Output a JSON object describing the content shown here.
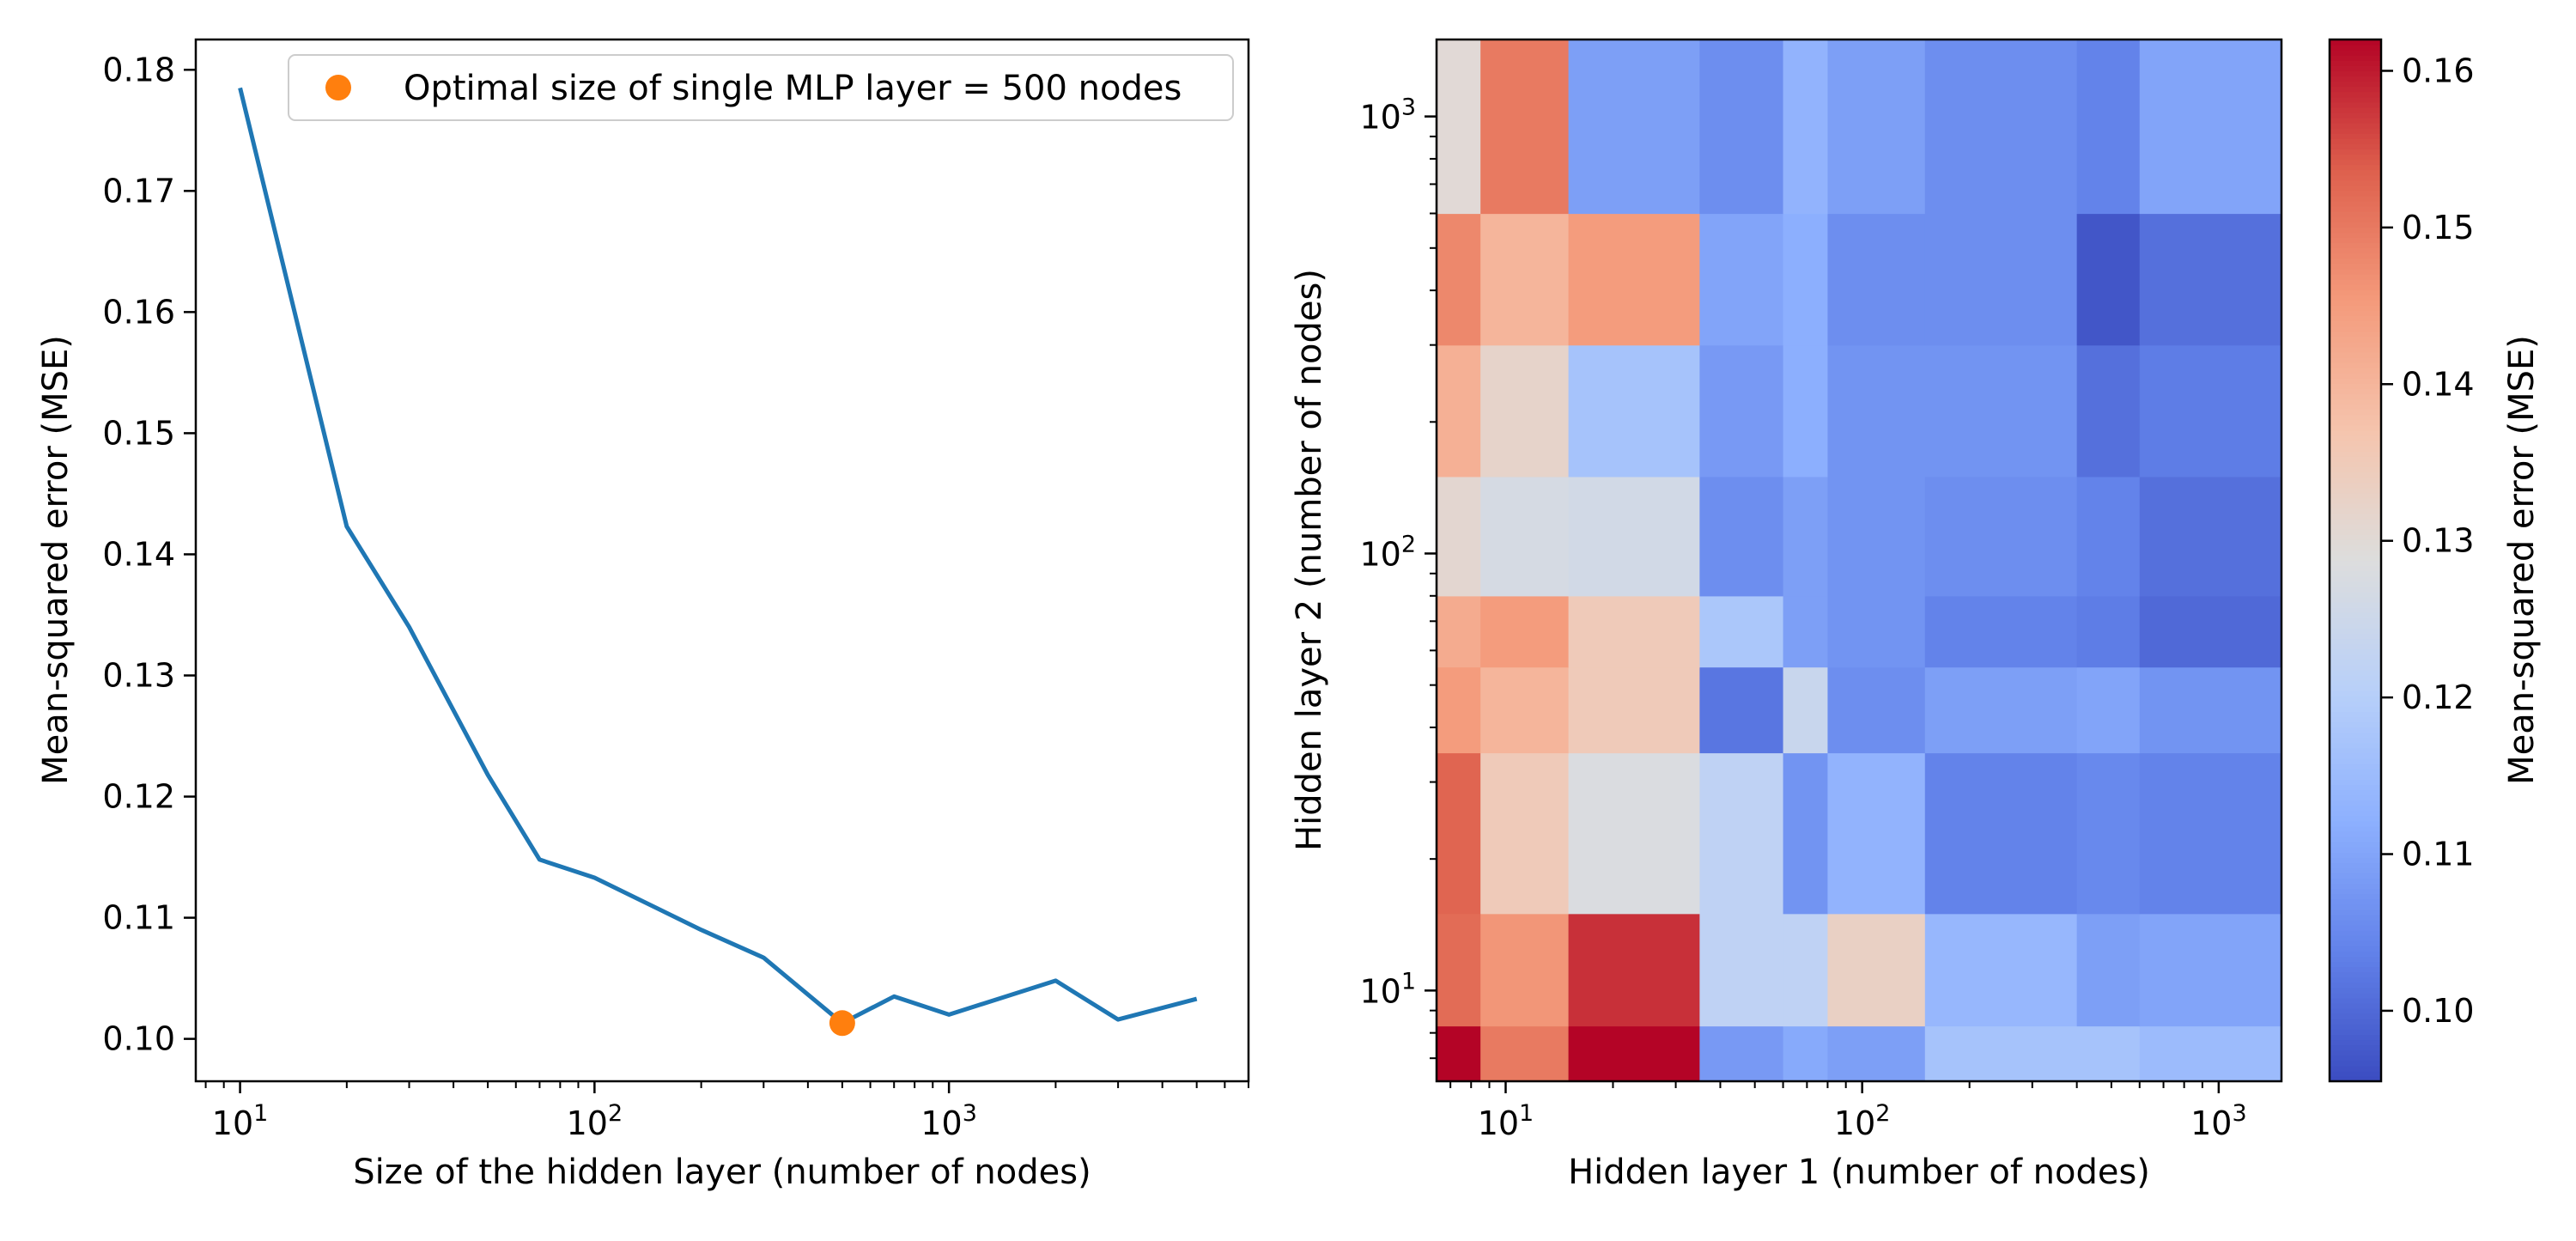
{
  "chart_data": [
    {
      "type": "line",
      "xlabel": "Size of the hidden layer (number of nodes)",
      "ylabel": "Mean-squared error (MSE)",
      "xscale": "log",
      "xlim": [
        7.5,
        7000
      ],
      "ylim": [
        0.0965,
        0.1825
      ],
      "xticks": [
        {
          "value": 10,
          "base": "10",
          "exp": "1"
        },
        {
          "value": 100,
          "base": "10",
          "exp": "2"
        },
        {
          "value": 1000,
          "base": "10",
          "exp": "3"
        }
      ],
      "yticks": [
        0.1,
        0.11,
        0.12,
        0.13,
        0.14,
        0.15,
        0.16,
        0.17,
        0.18
      ],
      "ytick_labels": [
        "0.10",
        "0.11",
        "0.12",
        "0.13",
        "0.14",
        "0.15",
        "0.16",
        "0.17",
        "0.18"
      ],
      "series": [
        {
          "color": "#1f77b4",
          "x": [
            10,
            20,
            30,
            50,
            70,
            100,
            200,
            300,
            500,
            700,
            1000,
            2000,
            3000,
            5000
          ],
          "y": [
            0.1785,
            0.1423,
            0.134,
            0.1218,
            0.1148,
            0.1133,
            0.109,
            0.1067,
            0.1013,
            0.1035,
            0.102,
            0.1048,
            0.1016,
            0.1033
          ]
        }
      ],
      "highlight": {
        "label": "Optimal size of single MLP layer = 500 nodes",
        "x": 500,
        "y": 0.1013,
        "color": "#ff7f0e"
      },
      "legend": {
        "position": "top-right"
      },
      "grid": false
    },
    {
      "type": "heatmap",
      "xlabel": "Hidden layer 1 (number of nodes)",
      "ylabel": "Hidden layer 2 (number of nodes)",
      "xscale": "log",
      "yscale": "log",
      "x_edges": [
        6.4,
        8.5,
        15,
        35,
        60,
        80,
        150,
        400,
        600,
        1500
      ],
      "y_edges": [
        6.2,
        8.3,
        15,
        35,
        55,
        80,
        150,
        300,
        600,
        1500
      ],
      "xlim": [
        6.4,
        1500
      ],
      "ylim": [
        6.2,
        1500
      ],
      "xticks": [
        {
          "value": 10,
          "base": "10",
          "exp": "1"
        },
        {
          "value": 100,
          "base": "10",
          "exp": "2"
        },
        {
          "value": 1000,
          "base": "10",
          "exp": "3"
        }
      ],
      "yticks": [
        {
          "value": 10,
          "base": "10",
          "exp": "1"
        },
        {
          "value": 100,
          "base": "10",
          "exp": "2"
        },
        {
          "value": 1000,
          "base": "10",
          "exp": "3"
        }
      ],
      "values": [
        [
          0.162,
          0.15,
          0.162,
          0.108,
          0.111,
          0.109,
          0.117,
          0.117,
          0.115
        ],
        [
          0.152,
          0.146,
          0.158,
          0.122,
          0.122,
          0.133,
          0.114,
          0.109,
          0.11
        ],
        [
          0.153,
          0.135,
          0.128,
          0.122,
          0.107,
          0.113,
          0.104,
          0.105,
          0.104
        ],
        [
          0.145,
          0.14,
          0.135,
          0.102,
          0.124,
          0.106,
          0.109,
          0.11,
          0.107
        ],
        [
          0.142,
          0.145,
          0.135,
          0.118,
          0.109,
          0.107,
          0.104,
          0.103,
          0.1
        ],
        [
          0.131,
          0.127,
          0.126,
          0.106,
          0.109,
          0.107,
          0.106,
          0.104,
          0.101
        ],
        [
          0.141,
          0.132,
          0.117,
          0.108,
          0.112,
          0.107,
          0.107,
          0.101,
          0.103
        ],
        [
          0.148,
          0.14,
          0.145,
          0.11,
          0.112,
          0.106,
          0.106,
          0.097,
          0.101
        ],
        [
          0.13,
          0.15,
          0.109,
          0.106,
          0.113,
          0.109,
          0.106,
          0.104,
          0.11
        ]
      ],
      "colorbar": {
        "label": "Mean-squared error (MSE)",
        "colormap": "coolwarm",
        "range": [
          0.0955,
          0.162
        ],
        "ticks": [
          0.1,
          0.11,
          0.12,
          0.13,
          0.14,
          0.15,
          0.16
        ],
        "tick_labels": [
          "0.10",
          "0.11",
          "0.12",
          "0.13",
          "0.14",
          "0.15",
          "0.16"
        ]
      }
    }
  ]
}
